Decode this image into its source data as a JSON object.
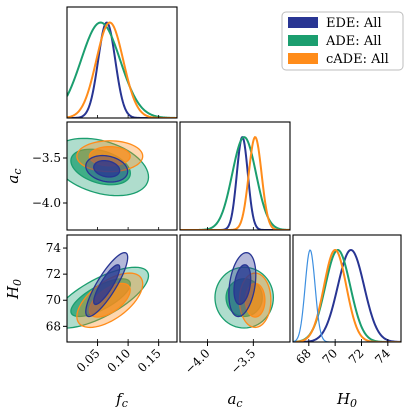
{
  "chart_data": {
    "type": "triangle",
    "parameters": [
      {
        "key": "fc",
        "symbol": "f",
        "sub": "c"
      },
      {
        "key": "ac",
        "symbol": "a",
        "sub": "c"
      },
      {
        "key": "H0",
        "symbol": "H",
        "sub": "0"
      }
    ],
    "ranges": {
      "fc": [
        0.0,
        0.18
      ],
      "ac": [
        -4.3,
        -3.1
      ],
      "H0": [
        66.8,
        75.0
      ]
    },
    "ticks": {
      "fc": {
        "values": [
          0.05,
          0.1,
          0.15
        ],
        "labels": [
          "0.05",
          "0.10",
          "0.15"
        ]
      },
      "ac": {
        "values": [
          -4.0,
          -3.5
        ],
        "labels": [
          "−4.0",
          "−3.5"
        ]
      },
      "H0": {
        "values": [
          68,
          70,
          72,
          74
        ],
        "labels": [
          "68",
          "70",
          "72",
          "74"
        ]
      }
    },
    "legend": {
      "placement": "top-right",
      "entries": [
        "EDE: All",
        "ADE: All",
        "cADE: All"
      ]
    },
    "series": [
      {
        "name": "EDE: All",
        "color": "#283593",
        "marginals": {
          "fc": {
            "mean": 0.065,
            "sd": 0.014
          },
          "ac": {
            "mean": -3.62,
            "sd": 0.06
          },
          "H0": {
            "mean": 71.2,
            "sd": 1.0
          }
        },
        "corr": {
          "fc_ac": -0.2,
          "fc_H0": 0.85,
          "ac_H0": 0.3
        }
      },
      {
        "name": "ADE: All",
        "color": "#1b9e6f",
        "marginals": {
          "fc": {
            "mean": 0.055,
            "sd": 0.032
          },
          "ac": {
            "mean": -3.6,
            "sd": 0.13
          },
          "H0": {
            "mean": 70.2,
            "sd": 0.95
          }
        },
        "corr": {
          "fc_ac": -0.35,
          "fc_H0": 0.72,
          "ac_H0": 0.0
        }
      },
      {
        "name": "cADE: All",
        "color": "#ff8c1a",
        "marginals": {
          "fc": {
            "mean": 0.07,
            "sd": 0.022
          },
          "ac": {
            "mean": -3.48,
            "sd": 0.07
          },
          "H0": {
            "mean": 70.0,
            "sd": 0.85
          }
        },
        "corr": {
          "fc_ac": 0.0,
          "fc_H0": 0.6,
          "ac_H0": 0.0
        }
      },
      {
        "name": "",
        "color": "#3d8fe0",
        "marginals": {
          "H0": {
            "mean": 68.1,
            "sd": 0.38
          }
        }
      }
    ]
  }
}
